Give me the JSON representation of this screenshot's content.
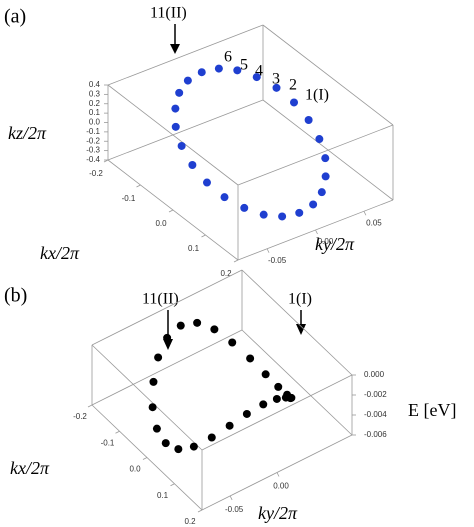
{
  "chart_data": [
    {
      "type": "scatter3d",
      "panel_label": "(a)",
      "xlabel": "kx/2π",
      "ylabel": "ky/2π",
      "zlabel": "kz/2π",
      "color": "#1f3fd0",
      "annotations": [
        "11(II)",
        "6",
        "5",
        "4",
        "3",
        "2",
        "1(I)"
      ],
      "xlim": [
        -0.2,
        0.2
      ],
      "ylim": [
        -0.08,
        0.08
      ],
      "zlim": [
        -0.4,
        0.4
      ],
      "xticks": [
        -0.2,
        -0.1,
        {
          "value": 0,
          "label": "0.0"
        },
        0.1,
        0.2
      ],
      "yticks": [
        -0.05,
        {
          "value": 0,
          "label": "0.00"
        },
        0.05
      ],
      "zticks": [
        -0.4,
        -0.3,
        -0.2,
        -0.1,
        {
          "value": 0,
          "label": "0.0"
        },
        0.1,
        0.2,
        0.3,
        0.4
      ],
      "x": [
        -0.15,
        -0.145,
        -0.13,
        -0.106,
        -0.075,
        -0.039,
        0,
        0.039,
        0.075,
        0.106,
        0.13,
        0.145,
        0.15,
        0.145,
        0.13,
        0.106,
        0.075,
        0.039,
        0,
        -0.039,
        -0.075,
        -0.106,
        -0.13,
        -0.145
      ],
      "y": [
        0,
        0.016,
        0.03,
        0.042,
        0.052,
        0.058,
        0.06,
        0.058,
        0.052,
        0.042,
        0.03,
        0.016,
        0,
        -0.016,
        -0.03,
        -0.042,
        -0.052,
        -0.058,
        -0.06,
        -0.058,
        -0.052,
        -0.042,
        -0.03,
        -0.016
      ],
      "z": [
        0.35,
        0.338,
        0.303,
        0.247,
        0.175,
        0.091,
        0,
        -0.091,
        -0.175,
        -0.247,
        -0.303,
        -0.338,
        -0.35,
        -0.338,
        -0.303,
        -0.247,
        -0.175,
        -0.091,
        0,
        0.091,
        0.175,
        0.247,
        0.303,
        0.338
      ]
    },
    {
      "type": "scatter3d",
      "panel_label": "(b)",
      "xlabel": "kx/2π",
      "ylabel": "ky/2π",
      "zlabel": "E [eV]",
      "color": "#000000",
      "annotations": [
        "11(II)",
        "1(I)"
      ],
      "xlim": [
        -0.2,
        0.2
      ],
      "ylim": [
        -0.08,
        0.08
      ],
      "zlim": [
        -0.006,
        0
      ],
      "xticks": [
        -0.2,
        -0.1,
        {
          "value": 0,
          "label": "0.0"
        },
        0.1,
        0.2
      ],
      "yticks": [
        -0.05,
        {
          "value": 0,
          "label": "0.00"
        }
      ],
      "zticks": [
        -0.006,
        -0.004,
        -0.002,
        {
          "value": 0,
          "label": "0.000"
        }
      ],
      "x": [
        -0.15,
        -0.145,
        -0.13,
        -0.106,
        -0.075,
        -0.039,
        0,
        0.039,
        0.075,
        0.106,
        0.13,
        0.145,
        0.15,
        0.145,
        0.13,
        0.106,
        0.075,
        0.039,
        0,
        -0.039,
        -0.075,
        -0.106,
        -0.13,
        -0.145
      ],
      "y": [
        0,
        0.016,
        0.03,
        0.042,
        0.052,
        0.058,
        0.06,
        0.058,
        0.052,
        0.042,
        0.03,
        0.016,
        0,
        -0.016,
        -0.03,
        -0.042,
        -0.052,
        -0.058,
        -0.06,
        -0.058,
        -0.052,
        -0.042,
        -0.03,
        -0.016
      ],
      "z": [
        -0.0005,
        -0.00084,
        -0.00175,
        -0.003,
        -0.00425,
        -0.00517,
        -0.0055,
        -0.00517,
        -0.00425,
        -0.003,
        -0.00175,
        -0.00084,
        -0.0005,
        -0.00084,
        -0.00175,
        -0.003,
        -0.00425,
        -0.00517,
        -0.0055,
        -0.00517,
        -0.00425,
        -0.003,
        -0.00175,
        -0.00084
      ]
    }
  ]
}
